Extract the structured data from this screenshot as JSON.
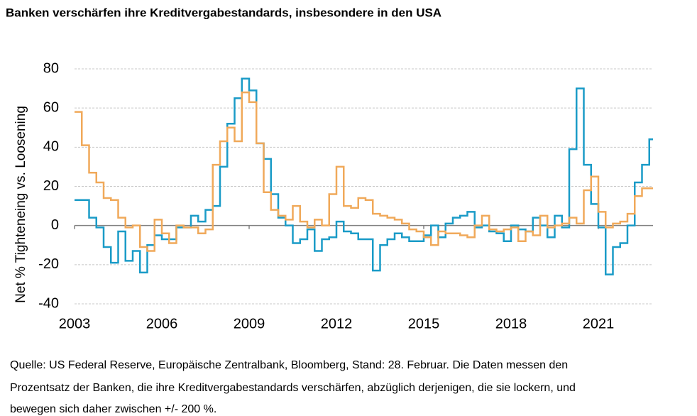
{
  "chart_data": {
    "type": "step",
    "title": "Banken verschärfen ihre Kreditvergabestandards, insbesondere in den USA",
    "y_label": "Net % Tighteneing vs. Loosening",
    "footnote": [
      "Quelle: US Federal Reserve, Europäische Zentralbank, Bloomberg, Stand: 28. Februar. Die Daten messen den",
      "Prozentsatz der Banken, die ihre Kreditvergabestandards verschärfen, abzüglich derjenigen, die sie lockern, und",
      "bewegen sich daher zwischen +/- 200 %."
    ],
    "x": [
      2003,
      2003.25,
      2003.5,
      2003.75,
      2004,
      2004.25,
      2004.5,
      2004.75,
      2005,
      2005.25,
      2005.5,
      2005.75,
      2006,
      2006.25,
      2006.5,
      2006.75,
      2007,
      2007.25,
      2007.5,
      2007.75,
      2008,
      2008.25,
      2008.5,
      2008.75,
      2009,
      2009.25,
      2009.5,
      2009.75,
      2010,
      2010.25,
      2010.5,
      2010.75,
      2011,
      2011.25,
      2011.5,
      2011.75,
      2012,
      2012.25,
      2012.5,
      2012.75,
      2013,
      2013.25,
      2013.5,
      2013.75,
      2014,
      2014.25,
      2014.5,
      2014.75,
      2015,
      2015.25,
      2015.5,
      2015.75,
      2016,
      2016.25,
      2016.5,
      2016.75,
      2017,
      2017.25,
      2017.5,
      2017.75,
      2018,
      2018.25,
      2018.5,
      2018.75,
      2019,
      2019.25,
      2019.5,
      2019.75,
      2020,
      2020.25,
      2020.5,
      2020.75,
      2021,
      2021.25,
      2021.5,
      2021.75,
      2022,
      2022.25,
      2022.5,
      2022.75
    ],
    "series": [
      {
        "color": "#1a9bc7",
        "values": [
          13,
          13,
          4,
          -1,
          -11,
          -19,
          -3,
          -18,
          -13,
          -24,
          -10,
          -5,
          -7,
          -7,
          -1,
          -1,
          5,
          2,
          8,
          10,
          30,
          52,
          65,
          75,
          69,
          42,
          34,
          16,
          4,
          0,
          -9,
          -7,
          -2,
          -13,
          -7,
          -6,
          2,
          -3,
          -4,
          -7,
          -7,
          -23,
          -10,
          -7,
          -4,
          -6,
          -8,
          -8,
          -5,
          0,
          -6,
          1,
          4,
          5,
          7,
          -1,
          0,
          -3,
          -4,
          -8,
          0,
          -2,
          -3,
          4,
          0,
          -6,
          5,
          -1,
          39,
          70,
          31,
          11,
          -1,
          -25,
          -11,
          -9,
          0,
          22,
          31,
          44
        ]
      },
      {
        "color": "#f0a95a",
        "values": [
          58,
          41,
          27,
          22,
          14,
          13,
          4,
          -1,
          0,
          -11,
          -13,
          3,
          -4,
          -9,
          0,
          -1,
          -1,
          -4,
          -2,
          31,
          43,
          50,
          43,
          68,
          63,
          42,
          17,
          8,
          5,
          3,
          10,
          2,
          -1,
          3,
          0,
          16,
          30,
          10,
          9,
          14,
          13,
          6,
          5,
          4,
          3,
          1,
          -2,
          -3,
          -6,
          -10,
          -3,
          -4,
          -4,
          -5,
          -6,
          0,
          5,
          -2,
          -3,
          -2,
          -1,
          -8,
          -3,
          -5,
          5,
          -1,
          0,
          1,
          4,
          1,
          18,
          25,
          7,
          -1,
          1,
          2,
          6,
          15,
          19,
          19
        ]
      }
    ],
    "xlim": [
      2003,
      2023
    ],
    "xticks": [
      2003,
      2006,
      2009,
      2012,
      2015,
      2018,
      2021
    ],
    "ylim": [
      -40,
      80
    ],
    "yticks": [
      -40,
      -20,
      0,
      20,
      40,
      60,
      80
    ],
    "grid": true
  }
}
